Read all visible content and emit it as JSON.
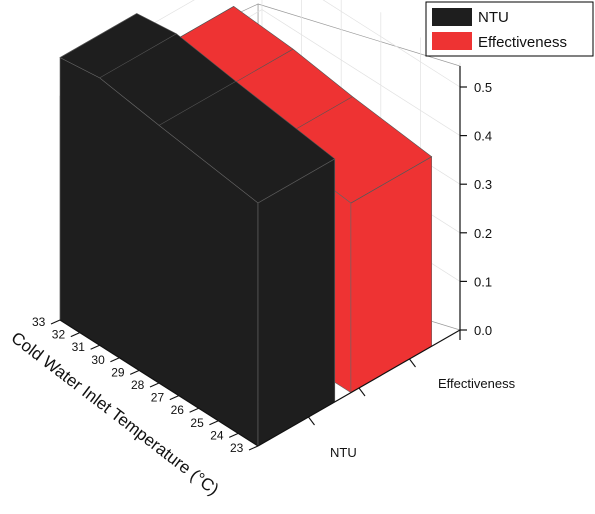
{
  "chart_data": {
    "type": "area",
    "title": "",
    "x_label": "Cold Water Inlet Temperature (°C)",
    "x_ticks": [
      "33",
      "32",
      "31",
      "30",
      "29",
      "28",
      "27",
      "26",
      "25",
      "24",
      "23"
    ],
    "z_ticks": [
      "0.0",
      "0.1",
      "0.2",
      "0.3",
      "0.4",
      "0.5"
    ],
    "z_range": [
      0,
      0.55
    ],
    "depth_categories": [
      "NTU",
      "Effectiveness"
    ],
    "legend_position": "top-right",
    "grid": true,
    "series": [
      {
        "name": "NTU",
        "color": "#1e1e1e",
        "x": [
          33,
          31,
          28,
          23
        ],
        "values": [
          0.54,
          0.55,
          0.53,
          0.5
        ]
      },
      {
        "name": "Effectiveness",
        "color": "#ee3333",
        "x": [
          33,
          30,
          27,
          23
        ],
        "values": [
          0.44,
          0.43,
          0.41,
          0.39
        ]
      }
    ]
  }
}
